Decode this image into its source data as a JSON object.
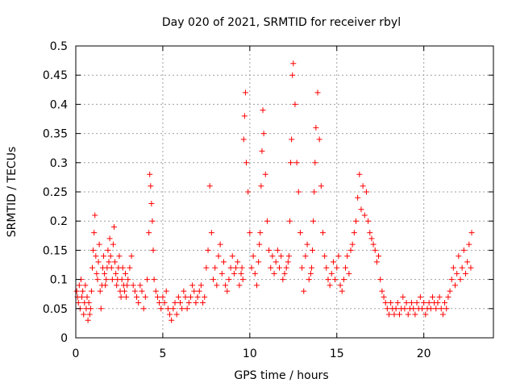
{
  "chart_data": {
    "type": "scatter",
    "title": "Day 020 of 2021, SRMTID for receiver rbyl",
    "xlabel": "GPS time / hours",
    "ylabel": "SRMTID / TECUs",
    "xlim": [
      0,
      24
    ],
    "ylim": [
      0,
      0.5
    ],
    "x_ticks": [
      "0",
      "5",
      "10",
      "15",
      "20"
    ],
    "x_tick_values": [
      0,
      5,
      10,
      15,
      20
    ],
    "y_ticks": [
      "0",
      "0.05",
      "0.1",
      "0.15",
      "0.2",
      "0.25",
      "0.3",
      "0.35",
      "0.4",
      "0.45",
      "0.5"
    ],
    "y_tick_values": [
      0,
      0.05,
      0.1,
      0.15,
      0.2,
      0.25,
      0.3,
      0.35,
      0.4,
      0.45,
      0.5
    ],
    "grid": true,
    "marker": "+",
    "series": [
      {
        "color": "#ff0000",
        "x": [
          0.05,
          0.1,
          0.15,
          0.2,
          0.25,
          0.3,
          0.35,
          0.4,
          0.45,
          0.5,
          0.55,
          0.6,
          0.65,
          0.7,
          0.75,
          0.8,
          0.85,
          0.9,
          0.95,
          1.0,
          1.05,
          1.1,
          1.15,
          1.2,
          1.25,
          1.3,
          1.35,
          1.4,
          1.45,
          1.5,
          1.55,
          1.6,
          1.65,
          1.7,
          1.75,
          1.8,
          1.85,
          1.9,
          1.95,
          2.0,
          2.05,
          2.1,
          2.15,
          2.2,
          2.25,
          2.3,
          2.35,
          2.4,
          2.45,
          2.5,
          2.55,
          2.6,
          2.65,
          2.7,
          2.75,
          2.8,
          2.85,
          2.9,
          2.95,
          3.0,
          3.1,
          3.2,
          3.3,
          3.4,
          3.5,
          3.6,
          3.7,
          3.8,
          3.9,
          4.0,
          4.1,
          4.2,
          4.25,
          4.3,
          4.35,
          4.4,
          4.45,
          4.5,
          4.6,
          4.7,
          4.8,
          4.9,
          5.0,
          5.1,
          5.2,
          5.3,
          5.4,
          5.5,
          5.6,
          5.7,
          5.8,
          5.9,
          6.0,
          6.1,
          6.2,
          6.3,
          6.4,
          6.5,
          6.6,
          6.7,
          6.8,
          6.9,
          7.0,
          7.1,
          7.2,
          7.3,
          7.4,
          7.5,
          7.6,
          7.7,
          7.8,
          7.9,
          8.0,
          8.1,
          8.2,
          8.3,
          8.4,
          8.5,
          8.6,
          8.7,
          8.8,
          8.9,
          9.0,
          9.1,
          9.2,
          9.3,
          9.4,
          9.5,
          9.55,
          9.6,
          9.65,
          9.7,
          9.75,
          9.8,
          9.9,
          10.0,
          10.1,
          10.2,
          10.3,
          10.4,
          10.5,
          10.55,
          10.6,
          10.65,
          10.7,
          10.75,
          10.8,
          10.9,
          11.0,
          11.1,
          11.2,
          11.3,
          11.4,
          11.5,
          11.6,
          11.7,
          11.8,
          11.9,
          12.0,
          12.1,
          12.2,
          12.25,
          12.3,
          12.35,
          12.4,
          12.45,
          12.5,
          12.6,
          12.7,
          12.8,
          12.9,
          13.0,
          13.1,
          13.2,
          13.3,
          13.4,
          13.5,
          13.55,
          13.6,
          13.65,
          13.7,
          13.75,
          13.8,
          13.9,
          14.0,
          14.1,
          14.2,
          14.3,
          14.4,
          14.5,
          14.6,
          14.7,
          14.8,
          14.9,
          15.0,
          15.1,
          15.2,
          15.3,
          15.4,
          15.5,
          15.6,
          15.7,
          15.8,
          15.9,
          16.0,
          16.1,
          16.2,
          16.3,
          16.4,
          16.5,
          16.6,
          16.7,
          16.8,
          16.9,
          17.0,
          17.1,
          17.2,
          17.3,
          17.4,
          17.5,
          17.6,
          17.7,
          17.8,
          17.9,
          18.0,
          18.1,
          18.2,
          18.3,
          18.4,
          18.5,
          18.6,
          18.7,
          18.8,
          18.9,
          19.0,
          19.1,
          19.2,
          19.3,
          19.4,
          19.5,
          19.6,
          19.7,
          19.8,
          19.9,
          20.0,
          20.1,
          20.2,
          20.3,
          20.4,
          20.5,
          20.6,
          20.7,
          20.8,
          20.9,
          21.0,
          21.1,
          21.2,
          21.3,
          21.4,
          21.5,
          21.6,
          21.7,
          21.8,
          21.9,
          22.0,
          22.1,
          22.2,
          22.3,
          22.4,
          22.5,
          22.6,
          22.7,
          22.75
        ],
        "y": [
          0.08,
          0.07,
          0.06,
          0.09,
          0.05,
          0.1,
          0.07,
          0.08,
          0.04,
          0.06,
          0.09,
          0.05,
          0.07,
          0.03,
          0.06,
          0.04,
          0.05,
          0.08,
          0.12,
          0.15,
          0.18,
          0.21,
          0.14,
          0.11,
          0.1,
          0.13,
          0.16,
          0.08,
          0.05,
          0.09,
          0.12,
          0.14,
          0.11,
          0.09,
          0.1,
          0.12,
          0.15,
          0.13,
          0.17,
          0.14,
          0.12,
          0.1,
          0.16,
          0.19,
          0.13,
          0.11,
          0.09,
          0.1,
          0.12,
          0.14,
          0.08,
          0.07,
          0.1,
          0.12,
          0.09,
          0.08,
          0.11,
          0.07,
          0.09,
          0.1,
          0.12,
          0.14,
          0.09,
          0.08,
          0.07,
          0.06,
          0.09,
          0.08,
          0.05,
          0.07,
          0.1,
          0.18,
          0.28,
          0.26,
          0.23,
          0.2,
          0.15,
          0.1,
          0.08,
          0.07,
          0.06,
          0.05,
          0.07,
          0.06,
          0.08,
          0.05,
          0.04,
          0.03,
          0.05,
          0.06,
          0.04,
          0.07,
          0.06,
          0.05,
          0.08,
          0.07,
          0.05,
          0.06,
          0.07,
          0.09,
          0.08,
          0.06,
          0.07,
          0.08,
          0.09,
          0.06,
          0.07,
          0.12,
          0.15,
          0.26,
          0.18,
          0.1,
          0.12,
          0.09,
          0.14,
          0.16,
          0.11,
          0.13,
          0.09,
          0.08,
          0.1,
          0.12,
          0.14,
          0.11,
          0.12,
          0.13,
          0.09,
          0.11,
          0.12,
          0.1,
          0.34,
          0.38,
          0.42,
          0.3,
          0.25,
          0.18,
          0.12,
          0.14,
          0.11,
          0.09,
          0.13,
          0.16,
          0.18,
          0.26,
          0.32,
          0.39,
          0.35,
          0.28,
          0.2,
          0.15,
          0.12,
          0.14,
          0.11,
          0.13,
          0.15,
          0.12,
          0.14,
          0.1,
          0.11,
          0.12,
          0.13,
          0.14,
          0.2,
          0.3,
          0.34,
          0.45,
          0.47,
          0.4,
          0.3,
          0.25,
          0.18,
          0.12,
          0.08,
          0.14,
          0.16,
          0.1,
          0.11,
          0.12,
          0.15,
          0.2,
          0.25,
          0.3,
          0.36,
          0.42,
          0.34,
          0.26,
          0.18,
          0.14,
          0.12,
          0.1,
          0.09,
          0.11,
          0.13,
          0.1,
          0.12,
          0.14,
          0.09,
          0.08,
          0.1,
          0.12,
          0.14,
          0.11,
          0.15,
          0.16,
          0.18,
          0.2,
          0.24,
          0.28,
          0.22,
          0.26,
          0.21,
          0.25,
          0.2,
          0.18,
          0.17,
          0.16,
          0.15,
          0.13,
          0.14,
          0.1,
          0.08,
          0.07,
          0.06,
          0.05,
          0.04,
          0.06,
          0.05,
          0.04,
          0.05,
          0.06,
          0.04,
          0.05,
          0.07,
          0.05,
          0.06,
          0.04,
          0.05,
          0.06,
          0.05,
          0.04,
          0.06,
          0.05,
          0.07,
          0.05,
          0.06,
          0.04,
          0.05,
          0.06,
          0.05,
          0.07,
          0.06,
          0.05,
          0.06,
          0.07,
          0.05,
          0.04,
          0.06,
          0.05,
          0.07,
          0.08,
          0.1,
          0.12,
          0.09,
          0.11,
          0.14,
          0.1,
          0.12,
          0.15,
          0.11,
          0.13,
          0.16,
          0.12,
          0.18
        ]
      }
    ]
  }
}
